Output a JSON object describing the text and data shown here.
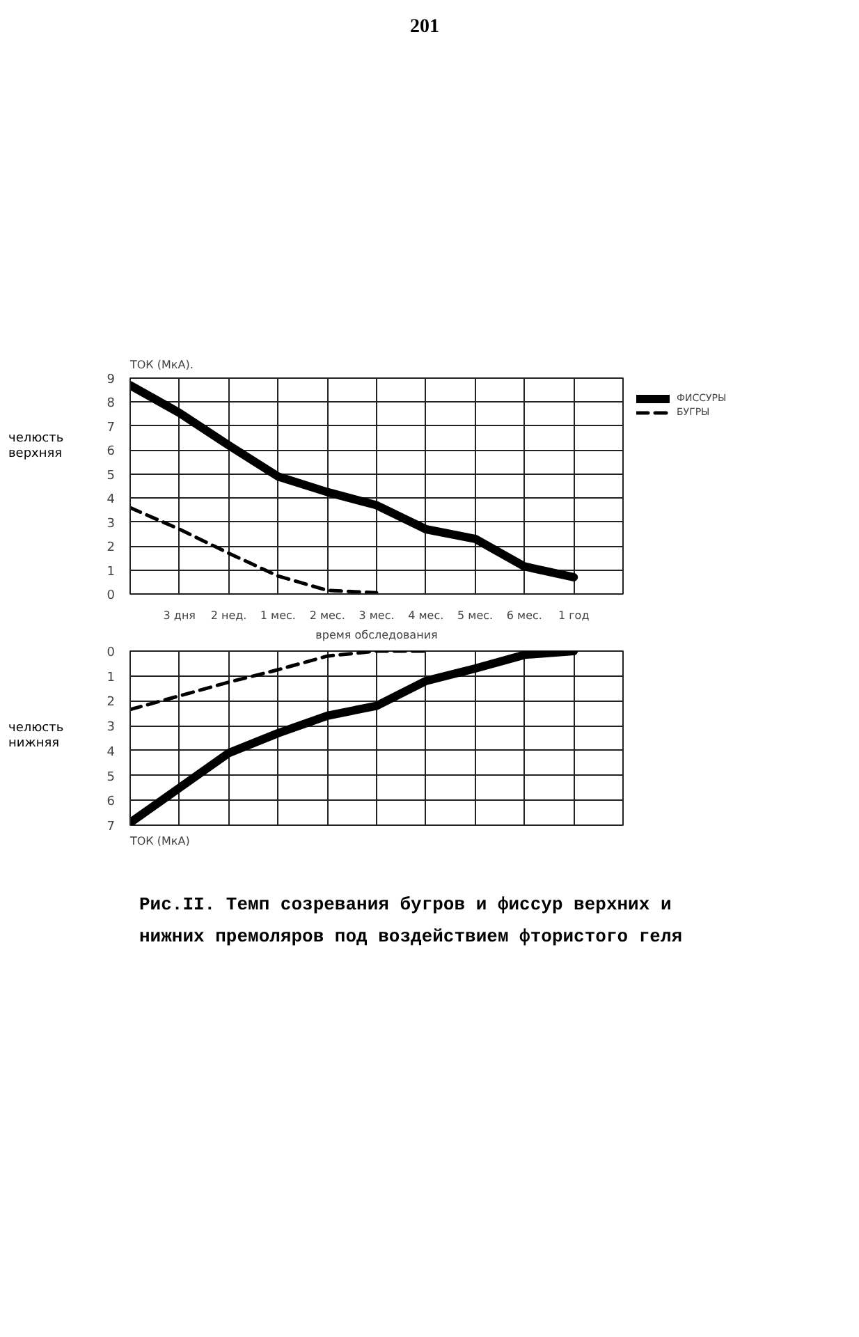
{
  "chart_data": [
    {
      "type": "line",
      "title": "ТОК (МкА).",
      "ylabel": "челюсть верхняя",
      "xlabel": "время обследования",
      "categories": [
        null,
        "3 дня",
        "2 нед.",
        "1 мес.",
        "2 мес.",
        "3 мес.",
        "4 мес.",
        "5 мес.",
        "6 мес.",
        "1 год"
      ],
      "ylim": [
        0,
        9
      ],
      "yticks": [
        0,
        1,
        2,
        3,
        4,
        5,
        6,
        7,
        8,
        9
      ],
      "grid": true,
      "legend": "right",
      "marker": "none",
      "series": [
        {
          "name": "ФИССУРЫ",
          "color": "#000000",
          "line_style": "solid",
          "values": [
            8.7,
            7.55,
            6.2,
            4.9,
            4.25,
            3.7,
            2.7,
            2.3,
            1.15,
            0.7
          ]
        },
        {
          "name": "БУГРЫ",
          "color": "#000000",
          "line_style": "dashed",
          "values": [
            3.6,
            2.7,
            1.7,
            0.75,
            0.15,
            0.05,
            null,
            null,
            null,
            null
          ]
        }
      ],
      "annotations": [
        "201"
      ]
    },
    {
      "type": "line",
      "title": "ТОК (МкА)",
      "ylabel": "челюсть нижняя",
      "categories": [
        null,
        null,
        null,
        null,
        null,
        null,
        null,
        null,
        null,
        null
      ],
      "ylim": [
        7,
        0
      ],
      "yticks": [
        0,
        1,
        2,
        3,
        4,
        5,
        6,
        7
      ],
      "grid": true,
      "tick_labels": "y",
      "marker": "none",
      "series": [
        {
          "color": "#000000",
          "line_style": "solid",
          "values": [
            6.9,
            5.5,
            4.1,
            3.3,
            2.6,
            2.2,
            1.2,
            0.7,
            0.15,
            0
          ]
        },
        {
          "color": "#000000",
          "line_style": "dashed",
          "values": [
            2.35,
            1.8,
            1.25,
            0.75,
            0.2,
            0,
            0,
            null,
            null,
            null
          ]
        }
      ],
      "annotations": [
        "Рис.II. Темп созревания бугров и фиссур верхних и нижних премоляров под воздействием фтористого геля"
      ]
    }
  ]
}
